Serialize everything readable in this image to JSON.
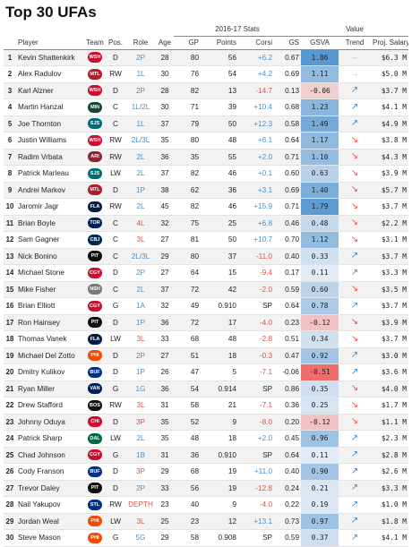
{
  "title": "Top 30 UFAs",
  "headers": {
    "stats_group": "2016-17 Stats",
    "value_group": "Value",
    "player": "Player",
    "team": "Team",
    "pos": "Pos.",
    "role": "Role",
    "age": "Age",
    "gp": "GP",
    "points": "Points",
    "corsi": "Corsi",
    "gs": "GS",
    "gsva": "GSVA",
    "trend": "Trend",
    "salary": "Proj. Salary"
  },
  "colors": {
    "trend_up": "#3a86c4",
    "trend_down": "#d9534f",
    "trend_flat": "#bbbbbb"
  },
  "chart_data": {
    "type": "table",
    "title": "Top 30 UFAs",
    "columns": [
      "",
      "Player",
      "Team",
      "Pos.",
      "Role",
      "Age",
      "GP",
      "Points",
      "Corsi",
      "GS",
      "GSVA",
      "Trend",
      "Proj. Salary"
    ],
    "rows": [
      {
        "rank": "1",
        "player": "Kevin Shattenkirk",
        "team": "WSH",
        "team_color": "#c8102e",
        "pos": "D",
        "role": "2P",
        "role_color": "blue",
        "age": "28",
        "gp": "80",
        "points": "56",
        "corsi": "+6.2",
        "gs": "0.67",
        "gsva": 1.86,
        "gsva_label": "1.86",
        "trend": "flat",
        "salary": "$6.3 M"
      },
      {
        "rank": "2",
        "player": "Alex Radulov",
        "team": "MTL",
        "team_color": "#af1e2d",
        "pos": "RW",
        "role": "1L",
        "role_color": "blue",
        "age": "30",
        "gp": "76",
        "points": "54",
        "corsi": "+4.2",
        "gs": "0.69",
        "gsva": 1.11,
        "gsva_label": "1.11",
        "trend": "flat",
        "salary": "$5.0 M"
      },
      {
        "rank": "3",
        "player": "Karl Alzner",
        "team": "WSH",
        "team_color": "#c8102e",
        "pos": "D",
        "role": "2P",
        "role_color": "blue",
        "age": "28",
        "gp": "82",
        "points": "13",
        "corsi": "-14.7",
        "gs": "0.13",
        "gsva": -0.06,
        "gsva_label": "-0.06",
        "trend": "up",
        "salary": "$3.7 M"
      },
      {
        "rank": "4",
        "player": "Martin Hanzal",
        "team": "MIN",
        "team_color": "#154734",
        "pos": "C",
        "role": "1L/2L",
        "role_color": "blue",
        "age": "30",
        "gp": "71",
        "points": "39",
        "corsi": "+10.4",
        "gs": "0.68",
        "gsva": 1.23,
        "gsva_label": "1.23",
        "trend": "up",
        "salary": "$4.1 M"
      },
      {
        "rank": "5",
        "player": "Joe Thornton",
        "team": "SJS",
        "team_color": "#006d75",
        "pos": "C",
        "role": "1L",
        "role_color": "blue",
        "age": "37",
        "gp": "79",
        "points": "50",
        "corsi": "+12.3",
        "gs": "0.58",
        "gsva": 1.49,
        "gsva_label": "1.49",
        "trend": "up",
        "salary": "$4.9 M"
      },
      {
        "rank": "6",
        "player": "Justin Williams",
        "team": "WSH",
        "team_color": "#c8102e",
        "pos": "RW",
        "role": "2L/3L",
        "role_color": "blue",
        "age": "35",
        "gp": "80",
        "points": "48",
        "corsi": "+6.1",
        "gs": "0.64",
        "gsva": 1.17,
        "gsva_label": "1.17",
        "trend": "down",
        "salary": "$3.8 M"
      },
      {
        "rank": "7",
        "player": "Radim Vrbata",
        "team": "ARI",
        "team_color": "#8c2633",
        "pos": "RW",
        "role": "2L",
        "role_color": "blue",
        "age": "36",
        "gp": "35",
        "points": "55",
        "corsi": "+2.0",
        "gs": "0.71",
        "gsva": 1.1,
        "gsva_label": "1.10",
        "trend": "down",
        "salary": "$4.3 M"
      },
      {
        "rank": "8",
        "player": "Patrick Marleau",
        "team": "SJS",
        "team_color": "#006d75",
        "pos": "LW",
        "role": "2L",
        "role_color": "blue",
        "age": "37",
        "gp": "82",
        "points": "46",
        "corsi": "+0.1",
        "gs": "0.60",
        "gsva": 0.63,
        "gsva_label": "0.63",
        "trend": "down",
        "salary": "$3.9 M"
      },
      {
        "rank": "9",
        "player": "Andrei Markov",
        "team": "MTL",
        "team_color": "#af1e2d",
        "pos": "D",
        "role": "1P",
        "role_color": "blue",
        "age": "38",
        "gp": "62",
        "points": "36",
        "corsi": "+3.1",
        "gs": "0.69",
        "gsva": 1.4,
        "gsva_label": "1.40",
        "trend": "down",
        "salary": "$5.7 M"
      },
      {
        "rank": "10",
        "player": "Jaromir Jagr",
        "team": "FLA",
        "team_color": "#041e42",
        "pos": "RW",
        "role": "2L",
        "role_color": "blue",
        "age": "45",
        "gp": "82",
        "points": "46",
        "corsi": "+15.9",
        "gs": "0.71",
        "gsva": 1.79,
        "gsva_label": "1.79",
        "trend": "down",
        "salary": "$3.7 M"
      },
      {
        "rank": "11",
        "player": "Brian Boyle",
        "team": "TOR",
        "team_color": "#00205b",
        "pos": "C",
        "role": "4L",
        "role_color": "red",
        "age": "32",
        "gp": "75",
        "points": "25",
        "corsi": "+6.8",
        "gs": "0.46",
        "gsva": 0.48,
        "gsva_label": "0.48",
        "trend": "down",
        "salary": "$2.2 M"
      },
      {
        "rank": "12",
        "player": "Sam Gagner",
        "team": "CBJ",
        "team_color": "#002654",
        "pos": "C",
        "role": "3L",
        "role_color": "red",
        "age": "27",
        "gp": "81",
        "points": "50",
        "corsi": "+10.7",
        "gs": "0.70",
        "gsva": 1.12,
        "gsva_label": "1.12",
        "trend": "down",
        "salary": "$3.1 M"
      },
      {
        "rank": "13",
        "player": "Nick Bonino",
        "team": "PIT",
        "team_color": "#111111",
        "pos": "C",
        "role": "2L/3L",
        "role_color": "blue",
        "age": "29",
        "gp": "80",
        "points": "37",
        "corsi": "-11.0",
        "gs": "0.40",
        "gsva": 0.33,
        "gsva_label": "0.33",
        "trend": "up",
        "salary": "$3.7 M"
      },
      {
        "rank": "14",
        "player": "Michael Stone",
        "team": "CGY",
        "team_color": "#c8102e",
        "pos": "D",
        "role": "2P",
        "role_color": "blue",
        "age": "27",
        "gp": "64",
        "points": "15",
        "corsi": "-9.4",
        "gs": "0.17",
        "gsva": 0.11,
        "gsva_label": "0.11",
        "trend": "up",
        "salary": "$3.3 M"
      },
      {
        "rank": "15",
        "player": "Mike Fisher",
        "team": "NSH",
        "team_color": "#7a7a7a",
        "pos": "C",
        "role": "2L",
        "role_color": "blue",
        "age": "37",
        "gp": "72",
        "points": "42",
        "corsi": "-2.0",
        "gs": "0.59",
        "gsva": 0.6,
        "gsva_label": "0.60",
        "trend": "down",
        "salary": "$3.5 M"
      },
      {
        "rank": "16",
        "player": "Brian Elliott",
        "team": "CGY",
        "team_color": "#c8102e",
        "pos": "G",
        "role": "1A",
        "role_color": "blue",
        "age": "32",
        "gp": "49",
        "points": "0.910",
        "corsi": "SP",
        "gs": "0.64",
        "gsva": 0.78,
        "gsva_label": "0.78",
        "trend": "up",
        "salary": "$3.7 M"
      },
      {
        "rank": "17",
        "player": "Ron Hainsey",
        "team": "PIT",
        "team_color": "#111111",
        "pos": "D",
        "role": "1P",
        "role_color": "blue",
        "age": "36",
        "gp": "72",
        "points": "17",
        "corsi": "-4.0",
        "gs": "0.23",
        "gsva": -0.12,
        "gsva_label": "-0.12",
        "trend": "down",
        "salary": "$3.9 M"
      },
      {
        "rank": "18",
        "player": "Thomas Vanek",
        "team": "FLA",
        "team_color": "#041e42",
        "pos": "LW",
        "role": "3L",
        "role_color": "red",
        "age": "33",
        "gp": "68",
        "points": "48",
        "corsi": "-2.8",
        "gs": "0.51",
        "gsva": 0.34,
        "gsva_label": "0.34",
        "trend": "down",
        "salary": "$3.7 M"
      },
      {
        "rank": "19",
        "player": "Michael Del Zotto",
        "team": "PHI",
        "team_color": "#f74902",
        "pos": "D",
        "role": "2P",
        "role_color": "blue",
        "age": "27",
        "gp": "51",
        "points": "18",
        "corsi": "-0.3",
        "gs": "0.47",
        "gsva": 0.92,
        "gsva_label": "0.92",
        "trend": "up",
        "salary": "$3.0 M"
      },
      {
        "rank": "20",
        "player": "Dmitry Kulikov",
        "team": "BUF",
        "team_color": "#003087",
        "pos": "D",
        "role": "1P",
        "role_color": "blue",
        "age": "26",
        "gp": "47",
        "points": "5",
        "corsi": "-7.1",
        "gs": "-0.06",
        "gsva": -0.51,
        "gsva_label": "-0.51",
        "trend": "up",
        "salary": "$3.6 M"
      },
      {
        "rank": "21",
        "player": "Ryan Miller",
        "team": "VAN",
        "team_color": "#00205b",
        "pos": "G",
        "role": "1G",
        "role_color": "blue",
        "age": "36",
        "gp": "54",
        "points": "0.914",
        "corsi": "SP",
        "gs": "0.86",
        "gsva": 0.35,
        "gsva_label": "0.35",
        "trend": "down",
        "salary": "$4.0 M"
      },
      {
        "rank": "22",
        "player": "Drew Stafford",
        "team": "BOS",
        "team_color": "#111111",
        "pos": "RW",
        "role": "3L",
        "role_color": "red",
        "age": "31",
        "gp": "58",
        "points": "21",
        "corsi": "-7.1",
        "gs": "0.36",
        "gsva": 0.25,
        "gsva_label": "0.25",
        "trend": "down",
        "salary": "$1.7 M"
      },
      {
        "rank": "23",
        "player": "Johnny Oduya",
        "team": "CHI",
        "team_color": "#cf0a2c",
        "pos": "D",
        "role": "3P",
        "role_color": "red",
        "age": "35",
        "gp": "52",
        "points": "9",
        "corsi": "-8.0",
        "gs": "0.20",
        "gsva": -0.12,
        "gsva_label": "-0.12",
        "trend": "down",
        "salary": "$1.1 M"
      },
      {
        "rank": "24",
        "player": "Patrick Sharp",
        "team": "DAL",
        "team_color": "#006847",
        "pos": "LW",
        "role": "2L",
        "role_color": "blue",
        "age": "35",
        "gp": "48",
        "points": "18",
        "corsi": "+2.0",
        "gs": "0.45",
        "gsva": 0.96,
        "gsva_label": "0.96",
        "trend": "up",
        "salary": "$2.3 M"
      },
      {
        "rank": "25",
        "player": "Chad Johnson",
        "team": "CGY",
        "team_color": "#c8102e",
        "pos": "G",
        "role": "1B",
        "role_color": "blue",
        "age": "31",
        "gp": "36",
        "points": "0.910",
        "corsi": "SP",
        "gs": "0.64",
        "gsva": 0.11,
        "gsva_label": "0.11",
        "trend": "up",
        "salary": "$2.8 M"
      },
      {
        "rank": "26",
        "player": "Cody Franson",
        "team": "BUF",
        "team_color": "#003087",
        "pos": "D",
        "role": "3P",
        "role_color": "red",
        "age": "29",
        "gp": "68",
        "points": "19",
        "corsi": "+11.0",
        "gs": "0.40",
        "gsva": 0.9,
        "gsva_label": "0.90",
        "trend": "up",
        "salary": "$2.6 M"
      },
      {
        "rank": "27",
        "player": "Trevor Daley",
        "team": "PIT",
        "team_color": "#111111",
        "pos": "D",
        "role": "2P",
        "role_color": "blue",
        "age": "33",
        "gp": "56",
        "points": "19",
        "corsi": "-12.8",
        "gs": "0.24",
        "gsva": 0.21,
        "gsva_label": "0.21",
        "trend": "up",
        "salary": "$3.3 M"
      },
      {
        "rank": "28",
        "player": "Nail Yakupov",
        "team": "STL",
        "team_color": "#002f87",
        "pos": "RW",
        "role": "DEPTH",
        "role_color": "red",
        "age": "23",
        "gp": "40",
        "points": "9",
        "corsi": "-4.0",
        "gs": "0.22",
        "gsva": 0.19,
        "gsva_label": "0.19",
        "trend": "up",
        "salary": "$1.0 M"
      },
      {
        "rank": "29",
        "player": "Jordan Weal",
        "team": "PHI",
        "team_color": "#f74902",
        "pos": "LW",
        "role": "3L",
        "role_color": "red",
        "age": "25",
        "gp": "23",
        "points": "12",
        "corsi": "+13.1",
        "gs": "0.73",
        "gsva": 0.97,
        "gsva_label": "0.97",
        "trend": "up",
        "salary": "$1.8 M"
      },
      {
        "rank": "30",
        "player": "Steve Mason",
        "team": "PHI",
        "team_color": "#f74902",
        "pos": "G",
        "role": "5G",
        "role_color": "blue",
        "age": "29",
        "gp": "58",
        "points": "0.908",
        "corsi": "SP",
        "gs": "0.59",
        "gsva": 0.37,
        "gsva_label": "0.37",
        "trend": "up",
        "salary": "$4.1 M"
      }
    ]
  }
}
